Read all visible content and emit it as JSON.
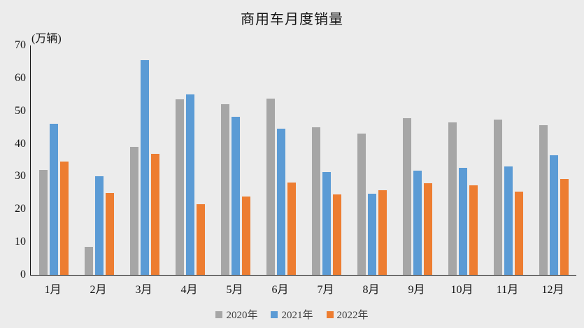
{
  "chart_data": {
    "type": "bar",
    "title": "商用车月度销量",
    "unit_label": "(万辆)",
    "xlabel": "",
    "ylabel": "万辆",
    "ylim": [
      0,
      70
    ],
    "y_tick_step": 10,
    "y_tick_labels": [
      "0",
      "10",
      "20",
      "30",
      "40",
      "50",
      "60",
      "70"
    ],
    "grid": false,
    "legend_position": "bottom",
    "background_color": "#ececec",
    "axis_color": "#141414",
    "categories": [
      "1月",
      "2月",
      "3月",
      "4月",
      "5月",
      "6月",
      "7月",
      "8月",
      "9月",
      "10月",
      "11月",
      "12月"
    ],
    "series": [
      {
        "name": "2020年",
        "color": "#a6a6a6",
        "values": [
          32.0,
          8.5,
          39.0,
          53.5,
          52.0,
          53.7,
          45.0,
          43.2,
          47.8,
          46.6,
          47.4,
          45.7
        ]
      },
      {
        "name": "2021年",
        "color": "#5b9bd5",
        "values": [
          46.0,
          30.0,
          65.5,
          55.0,
          48.3,
          44.7,
          31.3,
          24.8,
          31.8,
          32.6,
          33.0,
          36.5
        ]
      },
      {
        "name": "2022年",
        "color": "#ed7d31",
        "values": [
          34.5,
          25.0,
          37.0,
          21.5,
          24.0,
          28.2,
          24.5,
          25.8,
          28.0,
          27.3,
          25.5,
          29.2
        ]
      }
    ]
  }
}
